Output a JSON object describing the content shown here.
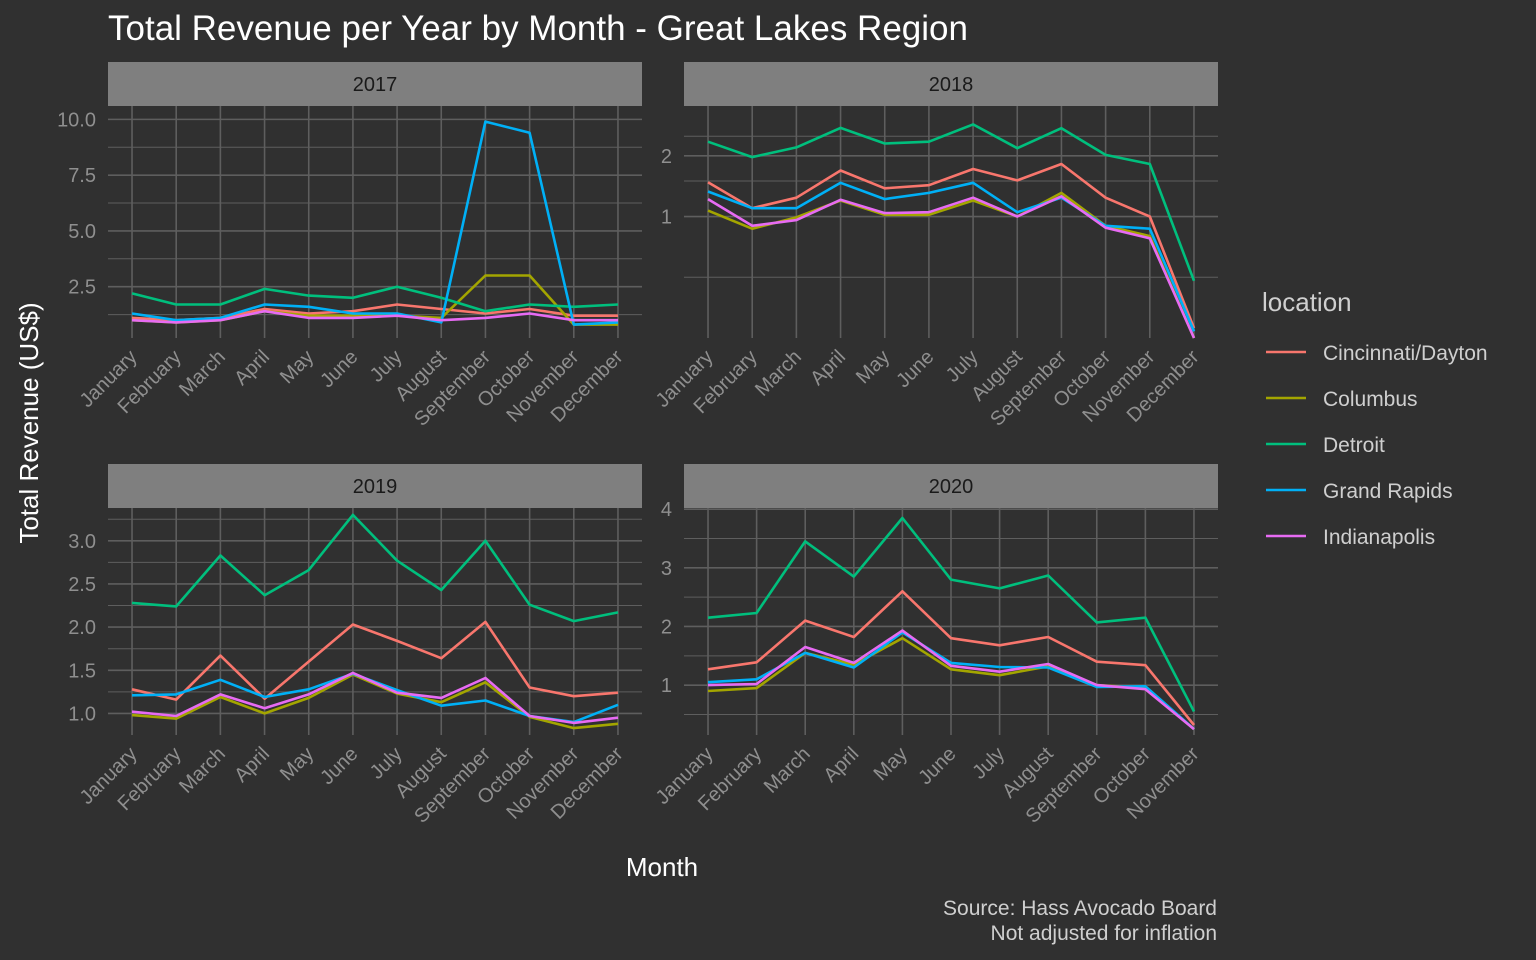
{
  "title": "Total Revenue per Year by Month - Great Lakes Region",
  "xlabel": "Month",
  "ylabel": "Total Revenue (US$)",
  "caption": [
    "Source: Hass Avocado Board",
    "Not adjusted for inflation"
  ],
  "legend": {
    "title": "location",
    "position": "right",
    "entries": [
      {
        "name": "Cincinnati/Dayton",
        "color": "#F8766D"
      },
      {
        "name": "Columbus",
        "color": "#A3A500"
      },
      {
        "name": "Detroit",
        "color": "#00BF7D"
      },
      {
        "name": "Grand Rapids",
        "color": "#00B0F6"
      },
      {
        "name": "Indianapolis",
        "color": "#E76BF3"
      }
    ]
  },
  "colors": {
    "background": "#303030",
    "strip": "#7F7F7F",
    "grid": "#5E5E5E",
    "axis_text": "#8F8F8F",
    "text": "#FFFFFF"
  },
  "chart_data": [
    {
      "type": "line",
      "facet": "2017",
      "grid": true,
      "categories": [
        "January",
        "February",
        "March",
        "April",
        "May",
        "June",
        "July",
        "August",
        "September",
        "October",
        "November",
        "December"
      ],
      "ylim": [
        0.2,
        10.6
      ],
      "yticks": [
        2.5,
        5.0,
        7.5,
        10.0
      ],
      "ytick_labels": [
        "2.5",
        "5.0",
        "7.5",
        "10.0"
      ],
      "series": [
        {
          "name": "Cincinnati/Dayton",
          "values": [
            1.1,
            1.0,
            1.1,
            1.5,
            1.3,
            1.4,
            1.7,
            1.5,
            1.3,
            1.5,
            1.2,
            1.2
          ]
        },
        {
          "name": "Columbus",
          "values": [
            1.0,
            0.9,
            1.0,
            1.4,
            1.2,
            1.2,
            1.2,
            1.1,
            3.0,
            3.0,
            0.8,
            0.8
          ]
        },
        {
          "name": "Detroit",
          "values": [
            2.2,
            1.7,
            1.7,
            2.4,
            2.1,
            2.0,
            2.5,
            2.0,
            1.4,
            1.7,
            1.6,
            1.7
          ]
        },
        {
          "name": "Grand Rapids",
          "values": [
            1.3,
            1.0,
            1.1,
            1.7,
            1.6,
            1.3,
            1.3,
            0.9,
            9.9,
            9.4,
            0.8,
            0.9
          ]
        },
        {
          "name": "Indianapolis",
          "values": [
            1.0,
            0.9,
            1.0,
            1.4,
            1.1,
            1.1,
            1.2,
            1.0,
            1.1,
            1.3,
            1.0,
            1.0
          ]
        }
      ]
    },
    {
      "type": "line",
      "facet": "2018",
      "grid": true,
      "scale": "log",
      "categories": [
        "January",
        "February",
        "March",
        "April",
        "May",
        "June",
        "July",
        "August",
        "September",
        "October",
        "November",
        "December"
      ],
      "ylim": [
        0.25,
        3.53
      ],
      "yticks": [
        1,
        2
      ],
      "ytick_labels": [
        "1",
        "2"
      ],
      "series": [
        {
          "name": "Cincinnati/Dayton",
          "values": [
            1.48,
            1.1,
            1.24,
            1.69,
            1.38,
            1.43,
            1.72,
            1.51,
            1.82,
            1.24,
            1.0,
            0.28
          ]
        },
        {
          "name": "Columbus",
          "values": [
            1.07,
            0.87,
            0.99,
            1.2,
            1.02,
            1.02,
            1.2,
            1.0,
            1.31,
            0.9,
            0.8,
            0.25
          ]
        },
        {
          "name": "Detroit",
          "values": [
            2.35,
            1.97,
            2.2,
            2.75,
            2.3,
            2.35,
            2.86,
            2.18,
            2.74,
            2.02,
            1.82,
            0.48
          ]
        },
        {
          "name": "Grand Rapids",
          "values": [
            1.33,
            1.1,
            1.1,
            1.47,
            1.22,
            1.31,
            1.47,
            1.05,
            1.24,
            0.9,
            0.87,
            0.27
          ]
        },
        {
          "name": "Indianapolis",
          "values": [
            1.22,
            0.9,
            0.96,
            1.21,
            1.04,
            1.05,
            1.24,
            1.0,
            1.26,
            0.88,
            0.78,
            0.25
          ]
        }
      ]
    },
    {
      "type": "line",
      "facet": "2019",
      "grid": true,
      "categories": [
        "January",
        "February",
        "March",
        "April",
        "May",
        "June",
        "July",
        "August",
        "September",
        "October",
        "November",
        "December"
      ],
      "ylim": [
        0.75,
        3.38
      ],
      "yticks": [
        1.0,
        1.5,
        2.0,
        2.5,
        3.0
      ],
      "ytick_labels": [
        "1.0",
        "1.5",
        "2.0",
        "2.5",
        "3.0"
      ],
      "series": [
        {
          "name": "Cincinnati/Dayton",
          "values": [
            1.28,
            1.16,
            1.67,
            1.17,
            1.6,
            2.03,
            1.84,
            1.64,
            2.06,
            1.3,
            1.2,
            1.24
          ]
        },
        {
          "name": "Columbus",
          "values": [
            0.98,
            0.94,
            1.19,
            1.0,
            1.18,
            1.45,
            1.23,
            1.13,
            1.36,
            0.96,
            0.83,
            0.88
          ]
        },
        {
          "name": "Detroit",
          "values": [
            2.28,
            2.24,
            2.83,
            2.37,
            2.66,
            3.3,
            2.77,
            2.43,
            3.0,
            2.26,
            2.07,
            2.17
          ]
        },
        {
          "name": "Grand Rapids",
          "values": [
            1.21,
            1.22,
            1.39,
            1.19,
            1.28,
            1.46,
            1.27,
            1.09,
            1.15,
            0.97,
            0.9,
            1.1
          ]
        },
        {
          "name": "Indianapolis",
          "values": [
            1.02,
            0.97,
            1.22,
            1.06,
            1.22,
            1.47,
            1.24,
            1.18,
            1.41,
            0.97,
            0.89,
            0.95
          ]
        }
      ]
    },
    {
      "type": "line",
      "facet": "2020",
      "grid": true,
      "categories": [
        "January",
        "February",
        "March",
        "April",
        "May",
        "June",
        "July",
        "August",
        "September",
        "October",
        "November"
      ],
      "ylim": [
        0.15,
        4.02
      ],
      "yticks": [
        1,
        2,
        3,
        4
      ],
      "ytick_labels": [
        "1",
        "2",
        "3",
        "4"
      ],
      "series": [
        {
          "name": "Cincinnati/Dayton",
          "values": [
            1.27,
            1.39,
            2.1,
            1.82,
            2.6,
            1.8,
            1.68,
            1.82,
            1.4,
            1.34,
            0.32
          ]
        },
        {
          "name": "Columbus",
          "values": [
            0.9,
            0.95,
            1.55,
            1.35,
            1.8,
            1.27,
            1.17,
            1.32,
            1.0,
            0.95,
            0.25
          ]
        },
        {
          "name": "Detroit",
          "values": [
            2.15,
            2.23,
            3.45,
            2.85,
            3.85,
            2.8,
            2.65,
            2.87,
            2.07,
            2.15,
            0.55
          ]
        },
        {
          "name": "Grand Rapids",
          "values": [
            1.05,
            1.1,
            1.55,
            1.3,
            1.9,
            1.38,
            1.31,
            1.3,
            0.97,
            0.98,
            0.25
          ]
        },
        {
          "name": "Indianapolis",
          "values": [
            1.0,
            1.02,
            1.65,
            1.38,
            1.93,
            1.33,
            1.23,
            1.36,
            1.0,
            0.93,
            0.25
          ]
        }
      ]
    }
  ]
}
